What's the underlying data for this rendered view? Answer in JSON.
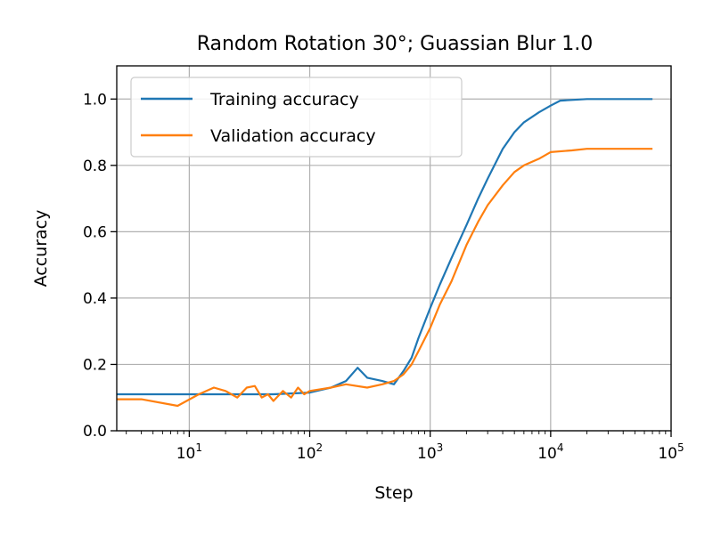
{
  "chart_data": {
    "type": "line",
    "title": "Random Rotation 30°; Guassian Blur 1.0",
    "xlabel": "Step",
    "ylabel": "Accuracy",
    "xscale": "log",
    "xlim": [
      2.5,
      100000
    ],
    "ylim": [
      0.0,
      1.1
    ],
    "grid": true,
    "legend_position": "top-left",
    "x_ticks": [
      {
        "value": 10,
        "base": "10",
        "exp": "1"
      },
      {
        "value": 100,
        "base": "10",
        "exp": "2"
      },
      {
        "value": 1000,
        "base": "10",
        "exp": "3"
      },
      {
        "value": 10000,
        "base": "10",
        "exp": "4"
      },
      {
        "value": 100000,
        "base": "10",
        "exp": "5"
      }
    ],
    "y_ticks": [
      {
        "value": 0.0,
        "label": "0.0"
      },
      {
        "value": 0.2,
        "label": "0.2"
      },
      {
        "value": 0.4,
        "label": "0.4"
      },
      {
        "value": 0.6,
        "label": "0.6"
      },
      {
        "value": 0.8,
        "label": "0.8"
      },
      {
        "value": 1.0,
        "label": "1.0"
      }
    ],
    "series": [
      {
        "name": "Training accuracy",
        "color": "#1f77b4",
        "x": [
          2.5,
          10,
          50,
          100,
          150,
          200,
          250,
          300,
          400,
          500,
          600,
          700,
          800,
          1000,
          1200,
          1500,
          2000,
          2500,
          3000,
          4000,
          5000,
          6000,
          8000,
          10000,
          12000,
          20000,
          40000,
          70000
        ],
        "y": [
          0.11,
          0.11,
          0.11,
          0.115,
          0.13,
          0.15,
          0.19,
          0.16,
          0.15,
          0.14,
          0.18,
          0.22,
          0.28,
          0.37,
          0.44,
          0.52,
          0.62,
          0.7,
          0.76,
          0.85,
          0.9,
          0.93,
          0.96,
          0.98,
          0.995,
          1.0,
          1.0,
          1.0
        ]
      },
      {
        "name": "Validation accuracy",
        "color": "#ff7f0e",
        "x": [
          2.5,
          4,
          8,
          12,
          16,
          20,
          25,
          30,
          35,
          40,
          45,
          50,
          60,
          70,
          80,
          90,
          100,
          150,
          200,
          300,
          400,
          500,
          600,
          700,
          800,
          1000,
          1200,
          1500,
          2000,
          2500,
          3000,
          4000,
          5000,
          6000,
          8000,
          10000,
          15000,
          20000,
          40000,
          70000
        ],
        "y": [
          0.095,
          0.095,
          0.075,
          0.11,
          0.13,
          0.12,
          0.1,
          0.13,
          0.135,
          0.1,
          0.11,
          0.09,
          0.12,
          0.1,
          0.13,
          0.11,
          0.12,
          0.13,
          0.14,
          0.13,
          0.14,
          0.15,
          0.17,
          0.2,
          0.24,
          0.31,
          0.38,
          0.45,
          0.56,
          0.63,
          0.68,
          0.74,
          0.78,
          0.8,
          0.82,
          0.84,
          0.845,
          0.85,
          0.85,
          0.85
        ]
      }
    ]
  }
}
